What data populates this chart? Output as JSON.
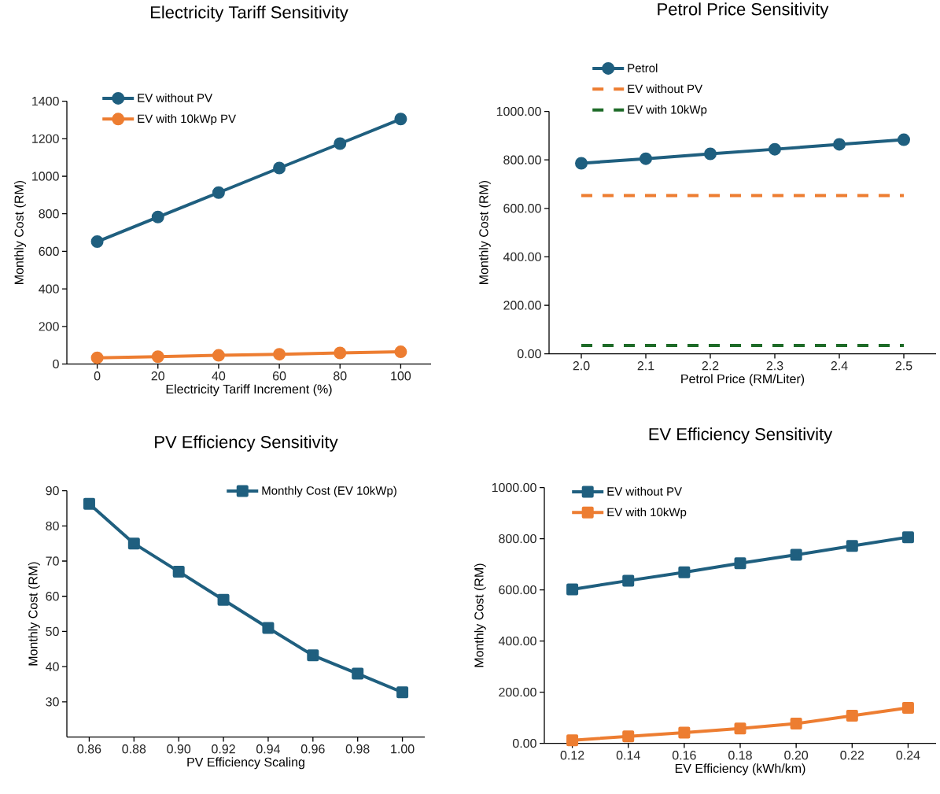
{
  "chart_data": [
    {
      "type": "line",
      "title": "Electricity Tariff Sensitivity",
      "xlabel": "Electricity Tariff Increment (%)",
      "ylabel": "Monthly Cost (RM)",
      "x": [
        0,
        20,
        40,
        60,
        80,
        100
      ],
      "xlim": [
        -10,
        110
      ],
      "xticks": [
        0,
        20,
        40,
        60,
        80,
        100
      ],
      "ylim": [
        0,
        1400
      ],
      "yticks": [
        0,
        200,
        400,
        600,
        800,
        1000,
        1200,
        1400
      ],
      "grid": false,
      "legend": "top left",
      "marker": "circle",
      "line_style": "solid",
      "series": [
        {
          "name": "EV without PV",
          "color": "#1f5f7f",
          "values": [
            652,
            783,
            913,
            1044,
            1174,
            1305
          ]
        },
        {
          "name": "EV with 10kWp PV",
          "color": "#ed7d31",
          "values": [
            33,
            39,
            46,
            52,
            59,
            65
          ]
        }
      ]
    },
    {
      "type": "line",
      "title": "Petrol Price Sensitivity",
      "xlabel": "Petrol Price (RM/Liter)",
      "ylabel": "Monthly Cost (RM)",
      "x": [
        2.0,
        2.1,
        2.2,
        2.3,
        2.4,
        2.5
      ],
      "xlim": [
        1.95,
        2.55
      ],
      "xticks": [
        {
          "value": 2.0,
          "label": "2.0"
        },
        2.1,
        2.2,
        2.3,
        2.4,
        2.5
      ],
      "ylim": [
        0,
        1000
      ],
      "yticks": [
        {
          "value": 0,
          "label": "0.00"
        },
        {
          "value": 200,
          "label": "200.00"
        },
        {
          "value": 400,
          "label": "400.00"
        },
        {
          "value": 600,
          "label": "600.00"
        },
        {
          "value": 800,
          "label": "800.00"
        },
        {
          "value": 1000,
          "label": "1000.00"
        }
      ],
      "grid": false,
      "legend": "top left",
      "marker": "circle",
      "line_style": "solid",
      "series": [
        {
          "name": "Petrol",
          "color": "#1f5f7f",
          "values": [
            786,
            805,
            825,
            844,
            864,
            883
          ]
        },
        {
          "name": "EV without PV",
          "color": "#ed7d31",
          "values": [
            653,
            653,
            653,
            653,
            653,
            653
          ],
          "line_style": "dashed",
          "marker": "none"
        },
        {
          "name": "EV with 10kWp",
          "color": "#1e6b28",
          "values": [
            34,
            34,
            34,
            34,
            34,
            34
          ],
          "line_style": "dashed",
          "marker": "none"
        }
      ]
    },
    {
      "type": "line",
      "title": "PV Efficiency Sensitivity",
      "xlabel": "PV Efficiency Scaling",
      "ylabel": "Monthly Cost (RM)",
      "x": [
        0.86,
        0.88,
        0.9,
        0.92,
        0.94,
        0.96,
        0.98,
        1.0
      ],
      "xlim": [
        0.85,
        1.01
      ],
      "xticks": [
        0.86,
        0.88,
        {
          "value": 0.9,
          "label": "0.90"
        },
        0.92,
        0.94,
        0.96,
        0.98,
        {
          "value": 1,
          "label": "1.00"
        }
      ],
      "ylim": [
        20,
        90
      ],
      "yticks": [
        30,
        40,
        50,
        60,
        70,
        80,
        90
      ],
      "grid": false,
      "legend": "top right",
      "marker": "square",
      "line_style": "solid",
      "series": [
        {
          "name": "Monthly Cost  (EV 10kWp)",
          "color": "#1f5f7f",
          "values": [
            86.3,
            75,
            67,
            59,
            51,
            43.2,
            38,
            32.7
          ]
        }
      ]
    },
    {
      "type": "line",
      "title": "EV Efficiency Sensitivity",
      "xlabel": "EV Efficiency (kWh/km)",
      "ylabel": "Monthly Cost (RM)",
      "x": [
        0.12,
        0.14,
        0.16,
        0.18,
        0.2,
        0.22,
        0.24
      ],
      "xlim": [
        0.11,
        0.25
      ],
      "xticks": [
        0.12,
        0.14,
        0.16,
        0.18,
        {
          "value": 0.2,
          "label": "0.20"
        },
        0.22,
        0.24
      ],
      "ylim": [
        0,
        1000
      ],
      "yticks": [
        {
          "value": 0,
          "label": "0.00"
        },
        {
          "value": 200,
          "label": "200.00"
        },
        {
          "value": 400,
          "label": "400.00"
        },
        {
          "value": 600,
          "label": "600.00"
        },
        {
          "value": 800,
          "label": "800.00"
        },
        {
          "value": 1000,
          "label": "1000.00"
        }
      ],
      "grid": false,
      "legend": "top left",
      "marker": "square",
      "line_style": "solid",
      "series": [
        {
          "name": "EV without PV",
          "color": "#1f5f7f",
          "values": [
            602,
            636,
            669,
            704,
            737,
            772,
            806
          ]
        },
        {
          "name": "EV with 10kWp",
          "color": "#ed7d31",
          "values": [
            12,
            27,
            42,
            58,
            77,
            108,
            139
          ]
        }
      ]
    }
  ]
}
